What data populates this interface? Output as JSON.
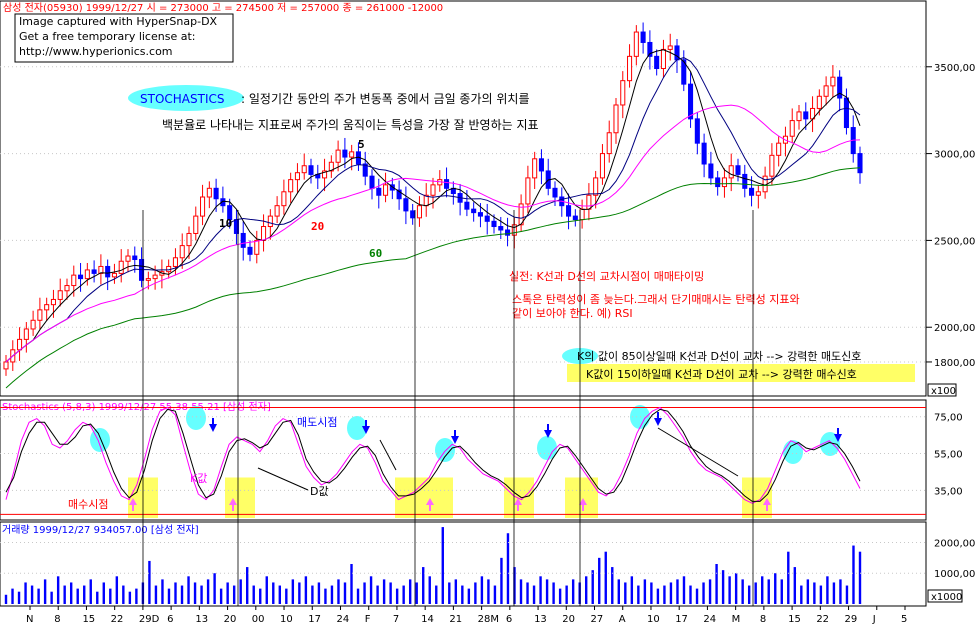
{
  "header": {
    "price_line": "삼성    전자(05930) 1999/12/27 시 = 273000 고 = 274500 저 = 257000 종 = 261000 -12000",
    "watermark": [
      "Image captured with HyperSnap-DX",
      "Get a free temporary license at:",
      "http://www.hyperionics.com"
    ]
  },
  "annotations": {
    "stoch_badge": "STOCHASTICS",
    "desc_line1": ": 일정기간 동안의 주가 변동폭 중에서 금일 종가의 위치를",
    "desc_line2": "백분율로 나타내는 지표로써 주가의 움직이는 특성을 가장 잘 반영하는 지표",
    "ma5": "5",
    "ma10": "10",
    "ma20": "20",
    "ma60": "60",
    "note_red1": "실전: K선과 D선의 교차시점이 매매타이밍",
    "note_red2": "스톡은 탄력성이 좀 늦는다.그래서 단기매매시는 탄력성 지표와",
    "note_red3": "같이 보아야 한다. 예) RSI",
    "sell_signal": "K의 값이 85이상일때 K선과 D선이 교차 --> 강력한 매도신호",
    "buy_signal": "K값이 15이하일때 K선과 D선이 교차 --> 강력한 매수신호",
    "sell_point": "매도시점",
    "buy_point": "매수시점",
    "k_label": "K값",
    "d_label": "D값"
  },
  "panels": {
    "stoch_title": "Stochastics (5,8,3) 1999/12/27 55.38 55.21 [삼성    전자]",
    "volume_title": "거래량 1999/12/27 934057.00 [삼성    전자]"
  },
  "colors": {
    "up": "#ff0000",
    "down": "#0000ff",
    "ma5": "#000000",
    "ma10": "#000080",
    "ma20": "#ff00ff",
    "ma60": "#008000",
    "k_line": "#ff00ff",
    "d_line": "#000000",
    "highlight_yellow": "#ffff66",
    "highlight_cyan": "#66ffff",
    "volume_bar": "#0000ff"
  },
  "chart_data": [
    {
      "type": "candlestick",
      "title": "",
      "yticks": [
        "3500,00",
        "3000,00",
        "2500,00",
        "2000,00",
        "1800,00"
      ],
      "ylim": [
        1650,
        3850
      ],
      "unit_label": "x100",
      "xticks": [
        "N",
        "8",
        "15",
        "22",
        "29D",
        "6",
        "13",
        "20",
        "00",
        "10",
        "17",
        "24",
        "F",
        "7",
        "14",
        "21",
        "28M",
        "6",
        "13",
        "20",
        "27",
        "A",
        "10",
        "17",
        "24",
        "M",
        "8",
        "15",
        "22",
        "29",
        "J",
        "5"
      ],
      "close": [
        1800,
        1870,
        1930,
        1990,
        2040,
        2100,
        2130,
        2160,
        2210,
        2240,
        2300,
        2280,
        2330,
        2310,
        2350,
        2290,
        2310,
        2380,
        2410,
        2390,
        2270,
        2280,
        2300,
        2320,
        2350,
        2400,
        2470,
        2540,
        2640,
        2750,
        2800,
        2740,
        2700,
        2620,
        2540,
        2460,
        2420,
        2500,
        2580,
        2640,
        2700,
        2780,
        2850,
        2890,
        2930,
        2880,
        2860,
        2900,
        2950,
        3020,
        2980,
        3010,
        2940,
        2870,
        2800,
        2760,
        2820,
        2790,
        2740,
        2670,
        2630,
        2700,
        2760,
        2820,
        2850,
        2800,
        2770,
        2720,
        2680,
        2660,
        2640,
        2610,
        2580,
        2560,
        2530,
        2590,
        2710,
        2860,
        2970,
        2900,
        2800,
        2750,
        2700,
        2640,
        2620,
        2680,
        2760,
        2860,
        3000,
        3120,
        3280,
        3420,
        3560,
        3700,
        3640,
        3560,
        3490,
        3600,
        3620,
        3540,
        3400,
        3200,
        3060,
        2940,
        2860,
        2810,
        2860,
        2930,
        2880,
        2800,
        2760,
        2780,
        2870,
        2990,
        3060,
        3100,
        3190,
        3240,
        3200,
        3260,
        3330,
        3390,
        3440,
        3320,
        3150,
        3000,
        2890
      ]
    },
    {
      "type": "line",
      "title": "Stochastics (5,8,3)",
      "yticks": [
        "75,00",
        "55,00",
        "35,00"
      ],
      "ylim": [
        20,
        83
      ],
      "series": [
        {
          "name": "K",
          "values": [
            30,
            45,
            62,
            72,
            74,
            70,
            60,
            58,
            62,
            68,
            72,
            70,
            62,
            50,
            40,
            32,
            30,
            38,
            52,
            68,
            78,
            80,
            76,
            60,
            45,
            33,
            30,
            35,
            48,
            60,
            64,
            62,
            60,
            56,
            62,
            70,
            74,
            72,
            60,
            48,
            42,
            38,
            40,
            44,
            50,
            56,
            60,
            58,
            50,
            40,
            35,
            30,
            32,
            34,
            38,
            42,
            50,
            56,
            60,
            58,
            52,
            48,
            44,
            42,
            40,
            36,
            32,
            30,
            34,
            40,
            48,
            56,
            60,
            58,
            52,
            46,
            40,
            34,
            32,
            36,
            44,
            54,
            66,
            74,
            78,
            80,
            76,
            70,
            64,
            56,
            50,
            46,
            44,
            42,
            38,
            34,
            30,
            28,
            30,
            36,
            46,
            56,
            62,
            60,
            56,
            58,
            60,
            62,
            58,
            52,
            44,
            36
          ]
        },
        {
          "name": "D",
          "values": [
            34,
            42,
            56,
            66,
            72,
            72,
            66,
            60,
            60,
            64,
            70,
            71,
            66,
            56,
            45,
            36,
            31,
            34,
            46,
            62,
            74,
            79,
            78,
            66,
            52,
            38,
            31,
            33,
            43,
            56,
            62,
            63,
            61,
            58,
            60,
            66,
            72,
            73,
            65,
            52,
            45,
            40,
            39,
            42,
            47,
            53,
            58,
            59,
            54,
            44,
            37,
            32,
            32,
            33,
            36,
            40,
            46,
            53,
            58,
            59,
            55,
            50,
            46,
            43,
            41,
            38,
            34,
            31,
            32,
            37,
            44,
            52,
            58,
            59,
            54,
            48,
            42,
            36,
            33,
            34,
            40,
            50,
            61,
            70,
            76,
            79,
            78,
            73,
            67,
            59,
            53,
            48,
            45,
            43,
            40,
            36,
            32,
            29,
            29,
            33,
            41,
            51,
            59,
            61,
            58,
            57,
            59,
            61,
            60,
            55,
            48,
            40
          ]
        }
      ]
    },
    {
      "type": "bar",
      "title": "거래량",
      "yticks": [
        "2000,00",
        "1000,00"
      ],
      "unit_label": "x1000",
      "values": [
        300,
        500,
        400,
        700,
        600,
        500,
        800,
        400,
        900,
        600,
        700,
        500,
        600,
        800,
        400,
        700,
        500,
        900,
        600,
        400,
        500,
        700,
        1400,
        600,
        800,
        500,
        700,
        600,
        900,
        700,
        600,
        800,
        1000,
        500,
        700,
        600,
        800,
        1200,
        600,
        500,
        900,
        700,
        600,
        500,
        800,
        700,
        900,
        600,
        700,
        500,
        600,
        800,
        700,
        1300,
        500,
        700,
        900,
        600,
        800,
        700,
        500,
        600,
        800,
        700,
        1200,
        900,
        600,
        2500,
        700,
        800,
        600,
        500,
        700,
        900,
        800,
        600,
        1500,
        2300,
        1200,
        800,
        700,
        600,
        900,
        800,
        700,
        500,
        600,
        800,
        700,
        900,
        1100,
        1500,
        1700,
        1200,
        800,
        700,
        900,
        600,
        800,
        700,
        500,
        600,
        700,
        800,
        900,
        600,
        500,
        700,
        800,
        1300,
        1100,
        900,
        1000,
        800,
        600,
        700,
        900,
        800,
        1000,
        800,
        1700,
        1200,
        600,
        800,
        700,
        600,
        900,
        700,
        800,
        600,
        1900,
        1700
      ]
    }
  ]
}
